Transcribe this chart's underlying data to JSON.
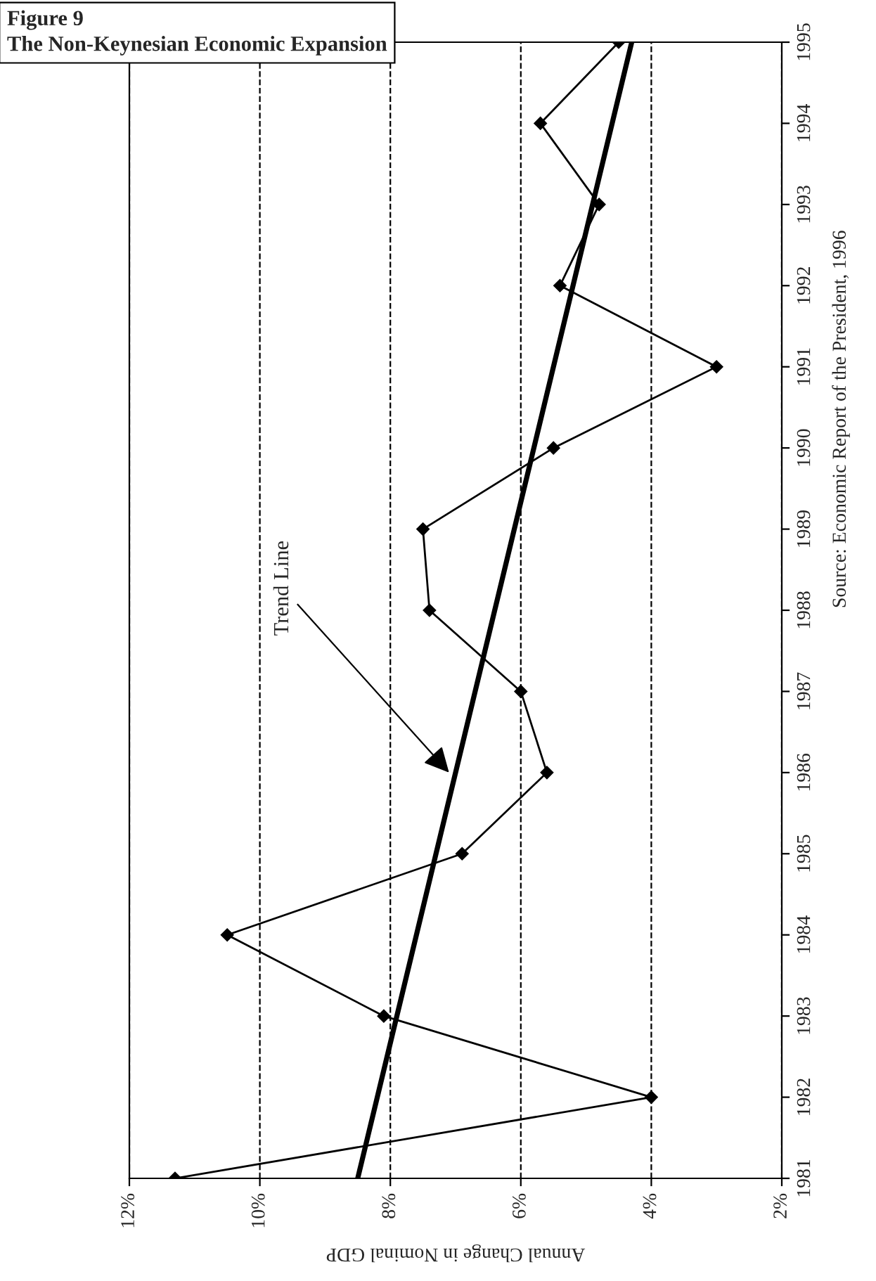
{
  "chart_data": {
    "type": "line",
    "orientation": "horizontal",
    "title": "Figure 9",
    "subtitle": "The Non-Keynesian Economic Expansion",
    "xlabel": "Annual Change in Nominal GDP",
    "x": [
      1981,
      1982,
      1983,
      1984,
      1985,
      1986,
      1987,
      1988,
      1989,
      1990,
      1991,
      1992,
      1993,
      1994,
      1995
    ],
    "series": [
      {
        "color": "#000000",
        "marker": "diamond",
        "values": [
          11.3,
          4.0,
          8.1,
          10.5,
          6.9,
          5.6,
          6.0,
          7.4,
          7.5,
          5.5,
          3.0,
          5.4,
          4.8,
          5.7,
          4.5
        ]
      },
      {
        "color": "#000000",
        "marker": "none",
        "x": [
          1981,
          1995
        ],
        "values": [
          8.5,
          4.3
        ]
      }
    ],
    "xlim": [
      12,
      2
    ],
    "xticks": [
      {
        "value": 12,
        "label": "12%"
      },
      {
        "value": 10,
        "label": "10%"
      },
      {
        "value": 8,
        "label": "8%"
      },
      {
        "value": 6,
        "label": "6%"
      },
      {
        "value": 4,
        "label": "4%"
      },
      {
        "value": 2,
        "label": "2%"
      }
    ],
    "ylim": [
      1981,
      1995
    ],
    "yticks": [
      1981,
      1982,
      1983,
      1984,
      1985,
      1986,
      1987,
      1988,
      1989,
      1990,
      1991,
      1992,
      1993,
      1994,
      1995
    ],
    "grid": "x",
    "line_style": "solid",
    "annotations": [
      {
        "text": "Trend Line",
        "x": 7.1,
        "y": 1986.0
      },
      "Source: Economic Report of the President, 1996"
    ]
  }
}
